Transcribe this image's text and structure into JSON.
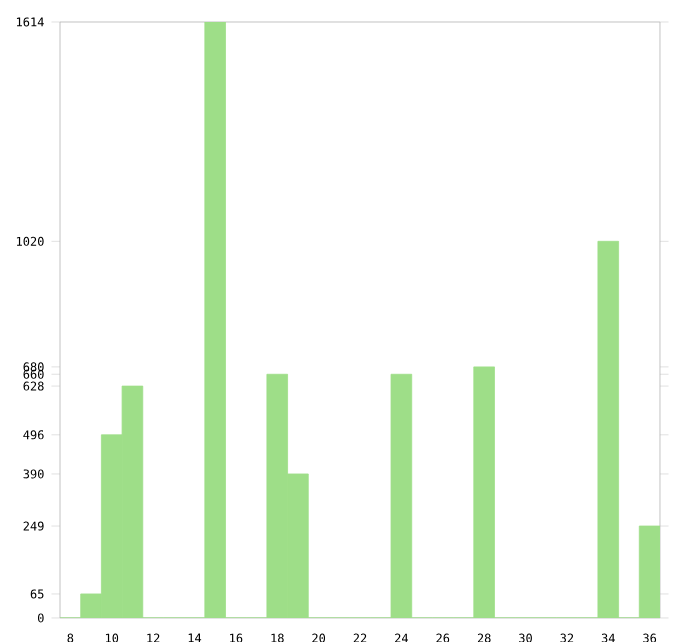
{
  "chart_data": {
    "type": "bar",
    "categories": [
      "8",
      null,
      "10",
      null,
      "12",
      null,
      "14",
      null,
      "16",
      null,
      "18",
      null,
      "20",
      null,
      "22",
      null,
      "24",
      null,
      "26",
      null,
      "28",
      null,
      "30",
      null,
      "32",
      null,
      "34",
      null,
      "36"
    ],
    "values": [
      0,
      65,
      496,
      628,
      0,
      0,
      0,
      1614,
      0,
      0,
      660,
      390,
      0,
      0,
      0,
      0,
      660,
      0,
      0,
      0,
      680,
      0,
      0,
      0,
      0,
      0,
      1020,
      0,
      249
    ],
    "color": "#9ede88",
    "ylim": [
      0,
      1614
    ],
    "yticks": [
      0,
      65,
      249,
      390,
      496,
      628,
      660,
      680,
      1020,
      1614
    ],
    "grid": false
  }
}
